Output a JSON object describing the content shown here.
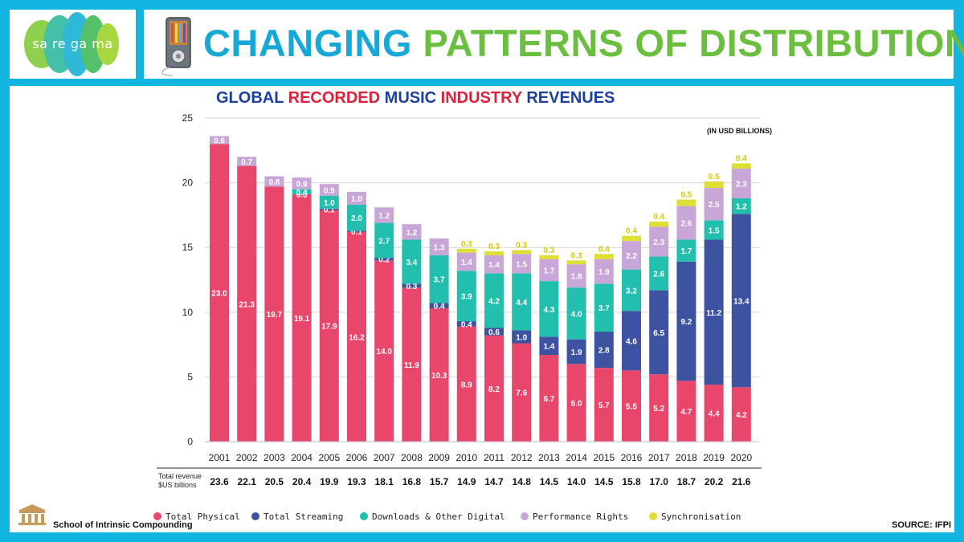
{
  "header": {
    "logo_text": "sa re ga ma",
    "title_part1": "CHANGING",
    "title_part2": "PATTERNS OF",
    "title_part3": "DISTRIBUTION"
  },
  "subtitle": {
    "w1": "GLOBAL",
    "w2": "RECORDED",
    "w3": "MUSIC",
    "w4": "INDUSTRY",
    "w5": "REVENUES"
  },
  "units_note": "(IN USD BILLIONS)",
  "footer": {
    "school_name": "School of Intrinsic Compounding",
    "source": "SOURCE: IFPI"
  },
  "chart_data": {
    "type": "bar",
    "stacked": true,
    "categories": [
      "2001",
      "2002",
      "2003",
      "2004",
      "2005",
      "2006",
      "2007",
      "2008",
      "2009",
      "2010",
      "2011",
      "2012",
      "2013",
      "2014",
      "2015",
      "2016",
      "2017",
      "2018",
      "2019",
      "2020"
    ],
    "ylim": [
      0,
      25
    ],
    "yticks": [
      0,
      5,
      10,
      15,
      20,
      25
    ],
    "grid": true,
    "legend_position": "bottom",
    "total_label_line1": "Total revenue",
    "total_label_line2": "$US billions",
    "totals": [
      "23.6",
      "22.1",
      "20.5",
      "20.4",
      "19.9",
      "19.3",
      "18.1",
      "16.8",
      "15.7",
      "14.9",
      "14.7",
      "14.8",
      "14.5",
      "14.0",
      "14.5",
      "15.8",
      "17.0",
      "18.7",
      "20.2",
      "21.6"
    ],
    "series": [
      {
        "name": "Total Physical",
        "color": "#e9466b",
        "values": [
          23.0,
          21.3,
          19.7,
          19.1,
          17.9,
          16.2,
          14.0,
          11.9,
          10.3,
          8.9,
          8.2,
          7.6,
          6.7,
          6.0,
          5.7,
          5.5,
          5.2,
          4.7,
          4.4,
          4.2
        ]
      },
      {
        "name": "Total Streaming",
        "color": "#3d52a1",
        "values": [
          null,
          null,
          null,
          0.0,
          0.1,
          0.1,
          0.2,
          0.3,
          0.4,
          0.4,
          0.6,
          1.0,
          1.4,
          1.9,
          2.8,
          4.6,
          6.5,
          9.2,
          11.2,
          13.4
        ]
      },
      {
        "name": "Downloads & Other Digital",
        "color": "#22bfae",
        "values": [
          null,
          null,
          null,
          0.4,
          1.0,
          2.0,
          2.7,
          3.4,
          3.7,
          3.9,
          4.2,
          4.4,
          4.3,
          4.0,
          3.7,
          3.2,
          2.6,
          1.7,
          1.5,
          1.2
        ]
      },
      {
        "name": "Performance Rights",
        "color": "#c8a6d8",
        "values": [
          0.6,
          0.7,
          0.8,
          0.9,
          0.9,
          1.0,
          1.2,
          1.2,
          1.3,
          1.4,
          1.4,
          1.5,
          1.7,
          1.8,
          1.9,
          2.2,
          2.3,
          2.6,
          2.5,
          2.3
        ]
      },
      {
        "name": "Synchronisation",
        "color": "#dede33",
        "values": [
          null,
          null,
          null,
          null,
          null,
          null,
          null,
          null,
          null,
          0.3,
          0.3,
          0.3,
          0.3,
          0.3,
          0.4,
          0.4,
          0.4,
          0.5,
          0.5,
          0.4
        ]
      }
    ]
  }
}
